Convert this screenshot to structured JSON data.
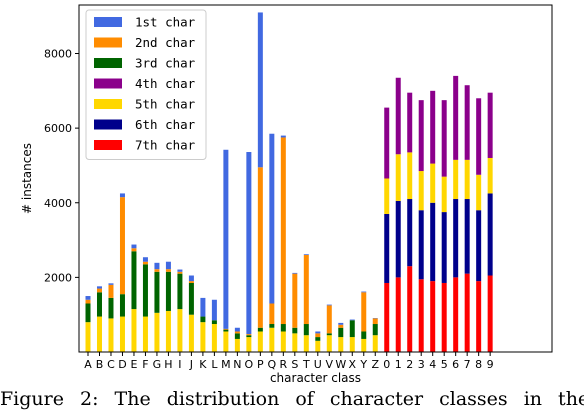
{
  "caption": "Figure 2: The distribution of character classes in the",
  "chart_data": {
    "type": "bar",
    "stacked": true,
    "xlabel": "character class",
    "ylabel": "# instances",
    "ylim": [
      0,
      9300
    ],
    "yticks": [
      2000,
      4000,
      6000,
      8000
    ],
    "legend_position": "top-left",
    "grid": false,
    "categories": [
      "A",
      "B",
      "C",
      "D",
      "E",
      "F",
      "G",
      "H",
      "I",
      "J",
      "K",
      "L",
      "M",
      "N",
      "O",
      "P",
      "Q",
      "R",
      "S",
      "T",
      "U",
      "V",
      "W",
      "X",
      "Y",
      "Z",
      "0",
      "1",
      "2",
      "3",
      "4",
      "5",
      "6",
      "7",
      "8",
      "9"
    ],
    "series": [
      {
        "name": "7th char",
        "color": "#ff0000",
        "values": [
          0,
          0,
          0,
          0,
          0,
          0,
          0,
          0,
          0,
          0,
          0,
          0,
          0,
          0,
          0,
          0,
          0,
          0,
          0,
          0,
          0,
          0,
          0,
          0,
          0,
          0,
          1850,
          2000,
          2300,
          1950,
          1900,
          1850,
          2000,
          2100,
          1900,
          2050
        ]
      },
      {
        "name": "6th char",
        "color": "#00008b",
        "values": [
          0,
          0,
          0,
          0,
          0,
          0,
          0,
          0,
          0,
          0,
          0,
          0,
          0,
          0,
          0,
          0,
          0,
          0,
          0,
          0,
          0,
          0,
          0,
          0,
          0,
          0,
          1850,
          2050,
          1800,
          1850,
          2100,
          1900,
          2100,
          2000,
          1900,
          2200
        ]
      },
      {
        "name": "5th char",
        "color": "#ffd700",
        "values": [
          800,
          950,
          900,
          950,
          1150,
          950,
          1050,
          1100,
          1150,
          1000,
          800,
          750,
          550,
          350,
          400,
          550,
          650,
          550,
          500,
          450,
          300,
          450,
          400,
          400,
          350,
          450,
          950,
          1250,
          1250,
          1050,
          1050,
          950,
          1050,
          1050,
          950,
          950
        ]
      },
      {
        "name": "3rd char",
        "color": "#006400",
        "values": [
          500,
          650,
          550,
          600,
          1550,
          1400,
          1100,
          1050,
          950,
          850,
          150,
          100,
          50,
          150,
          50,
          100,
          100,
          200,
          150,
          300,
          100,
          50,
          250,
          450,
          200,
          300,
          0,
          0,
          0,
          0,
          0,
          0,
          0,
          0,
          0,
          0
        ]
      },
      {
        "name": "2nd char",
        "color": "#ff8c00",
        "values": [
          100,
          100,
          350,
          2600,
          80,
          70,
          70,
          70,
          50,
          50,
          0,
          0,
          20,
          50,
          30,
          4300,
          550,
          5000,
          1450,
          1850,
          100,
          750,
          80,
          0,
          1050,
          150,
          0,
          0,
          0,
          0,
          0,
          0,
          0,
          0,
          0,
          0
        ]
      },
      {
        "name": "4th char",
        "color": "#8b008b",
        "values": [
          0,
          0,
          0,
          0,
          0,
          0,
          0,
          0,
          0,
          0,
          0,
          0,
          0,
          0,
          0,
          0,
          0,
          0,
          0,
          0,
          0,
          0,
          0,
          0,
          0,
          0,
          1900,
          2050,
          1600,
          1900,
          1950,
          2050,
          2250,
          2000,
          2050,
          1750
        ]
      },
      {
        "name": "1st char",
        "color": "#4169e1",
        "values": [
          100,
          60,
          40,
          100,
          100,
          120,
          170,
          200,
          60,
          150,
          500,
          550,
          4800,
          100,
          4880,
          4150,
          4550,
          50,
          20,
          20,
          50,
          20,
          50,
          20,
          20,
          10,
          0,
          0,
          0,
          0,
          0,
          0,
          0,
          0,
          0,
          0
        ]
      }
    ],
    "legend": [
      {
        "name": "1st char",
        "color": "#4169e1"
      },
      {
        "name": "2nd char",
        "color": "#ff8c00"
      },
      {
        "name": "3rd char",
        "color": "#006400"
      },
      {
        "name": "4th char",
        "color": "#8b008b"
      },
      {
        "name": "5th char",
        "color": "#ffd700"
      },
      {
        "name": "6th char",
        "color": "#00008b"
      },
      {
        "name": "7th char",
        "color": "#ff0000"
      }
    ]
  }
}
